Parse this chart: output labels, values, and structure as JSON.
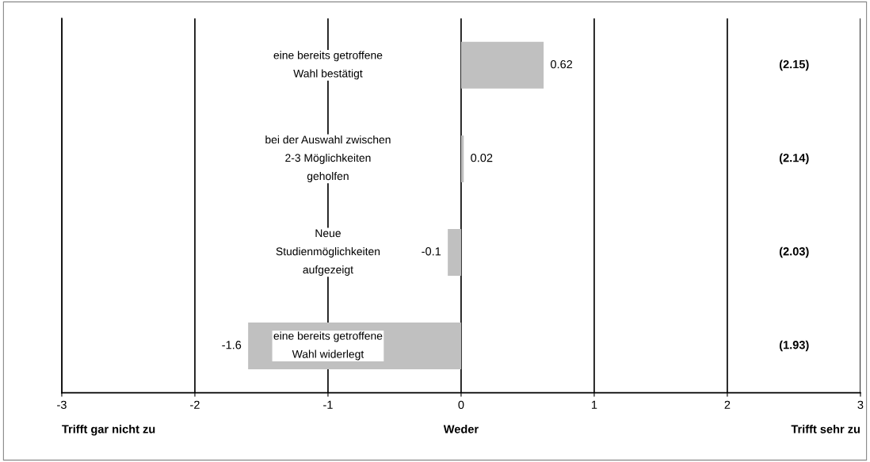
{
  "chart_data": {
    "type": "bar",
    "orientation": "horizontal",
    "categories": [
      "eine bereits getroffene\nWahl bestätigt",
      "bei der Auswahl zwischen\n2-3 Möglichkeiten\ngeholfen",
      "Neue\nStudienmöglichkeiten\naufgezeigt",
      "eine bereits getroffene\nWahl widerlegt"
    ],
    "values": [
      0.62,
      0.02,
      -0.1,
      -1.6
    ],
    "color": "#c0c0c0",
    "data_labels": true,
    "xlim": [
      -3,
      3
    ],
    "xticks": [
      -3,
      -2,
      -1,
      0,
      1,
      2,
      3
    ],
    "grid": "x",
    "legend": false,
    "annotations": [
      "(2.15)",
      "(2.14)",
      "(2.03)",
      "(1.93)",
      "Trifft gar nicht zu",
      "Weder",
      "Trifft sehr zu"
    ]
  }
}
